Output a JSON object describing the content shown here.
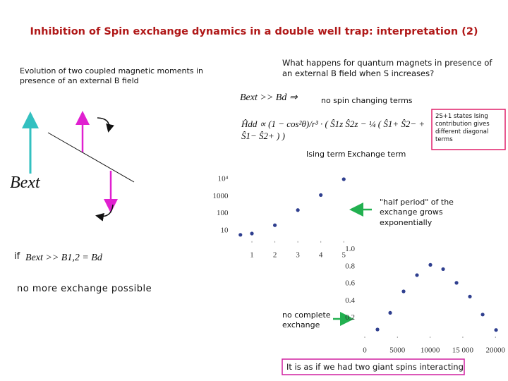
{
  "title": "Inhibition of Spin exchange dynamics in a double well trap: interpretation (2)",
  "left_text": "Evolution of two coupled magnetic moments in presence of an external B field",
  "question": "What happens for quantum magnets in presence of an external B field when S increases?",
  "condition": "Bext >> Bd ⇒",
  "no_spin": "no spin changing terms",
  "hamiltonian": "Ĥdd ∝ (1 − cos²θ)/r³ · ( Ŝ1z Ŝ2z − ¼ ( Ŝ1+ Ŝ2− + Ŝ1− Ŝ2+ ) )",
  "note_box": "2S+1 states Ising contribution gives different diagonal terms",
  "ising_label": "Ising term",
  "exchange_label": "Exchange term",
  "field_label": "Bext",
  "if_label": "if",
  "if_condition": "Bext >> B1,2 = Bd",
  "no_more": "no more exchange possible",
  "half_period_note": "\"half period\" of the exchange grows exponentially",
  "no_complete": "no complete exchange",
  "conclusion": "It is as if we had two giant spins interacting",
  "charts": [
    {
      "type": "scatter",
      "x": [
        0.5,
        1,
        2,
        3,
        4,
        5
      ],
      "values": [
        5.8,
        6.9,
        21,
        160,
        1200,
        10000
      ],
      "xlim": [
        0.4,
        5.3
      ],
      "ylim": [
        3,
        15000
      ],
      "log_y": true,
      "color": "#2f3f8f",
      "xticks": [
        1,
        2,
        3,
        4,
        5
      ],
      "yticks": [
        10,
        100,
        1000,
        {
          "value": 10000,
          "label": "10⁴"
        }
      ]
    },
    {
      "type": "scatter",
      "x": [
        1944,
        3890,
        5940,
        7990,
        10040,
        11990,
        14040,
        16090,
        18040,
        20090
      ],
      "values": [
        0.066,
        0.26,
        0.51,
        0.7,
        0.82,
        0.77,
        0.61,
        0.45,
        0.24,
        0.06
      ],
      "xlim": [
        0,
        21000
      ],
      "ylim": [
        0,
        1.05
      ],
      "log_y": false,
      "color": "#2f3f8f",
      "xticks": [
        0,
        5000,
        10000,
        {
          "value": 15000,
          "label": "15 000"
        },
        20000
      ],
      "yticks": [
        0.2,
        0.4,
        0.6,
        0.8,
        {
          "value": 1,
          "label": "1.0"
        }
      ]
    }
  ]
}
